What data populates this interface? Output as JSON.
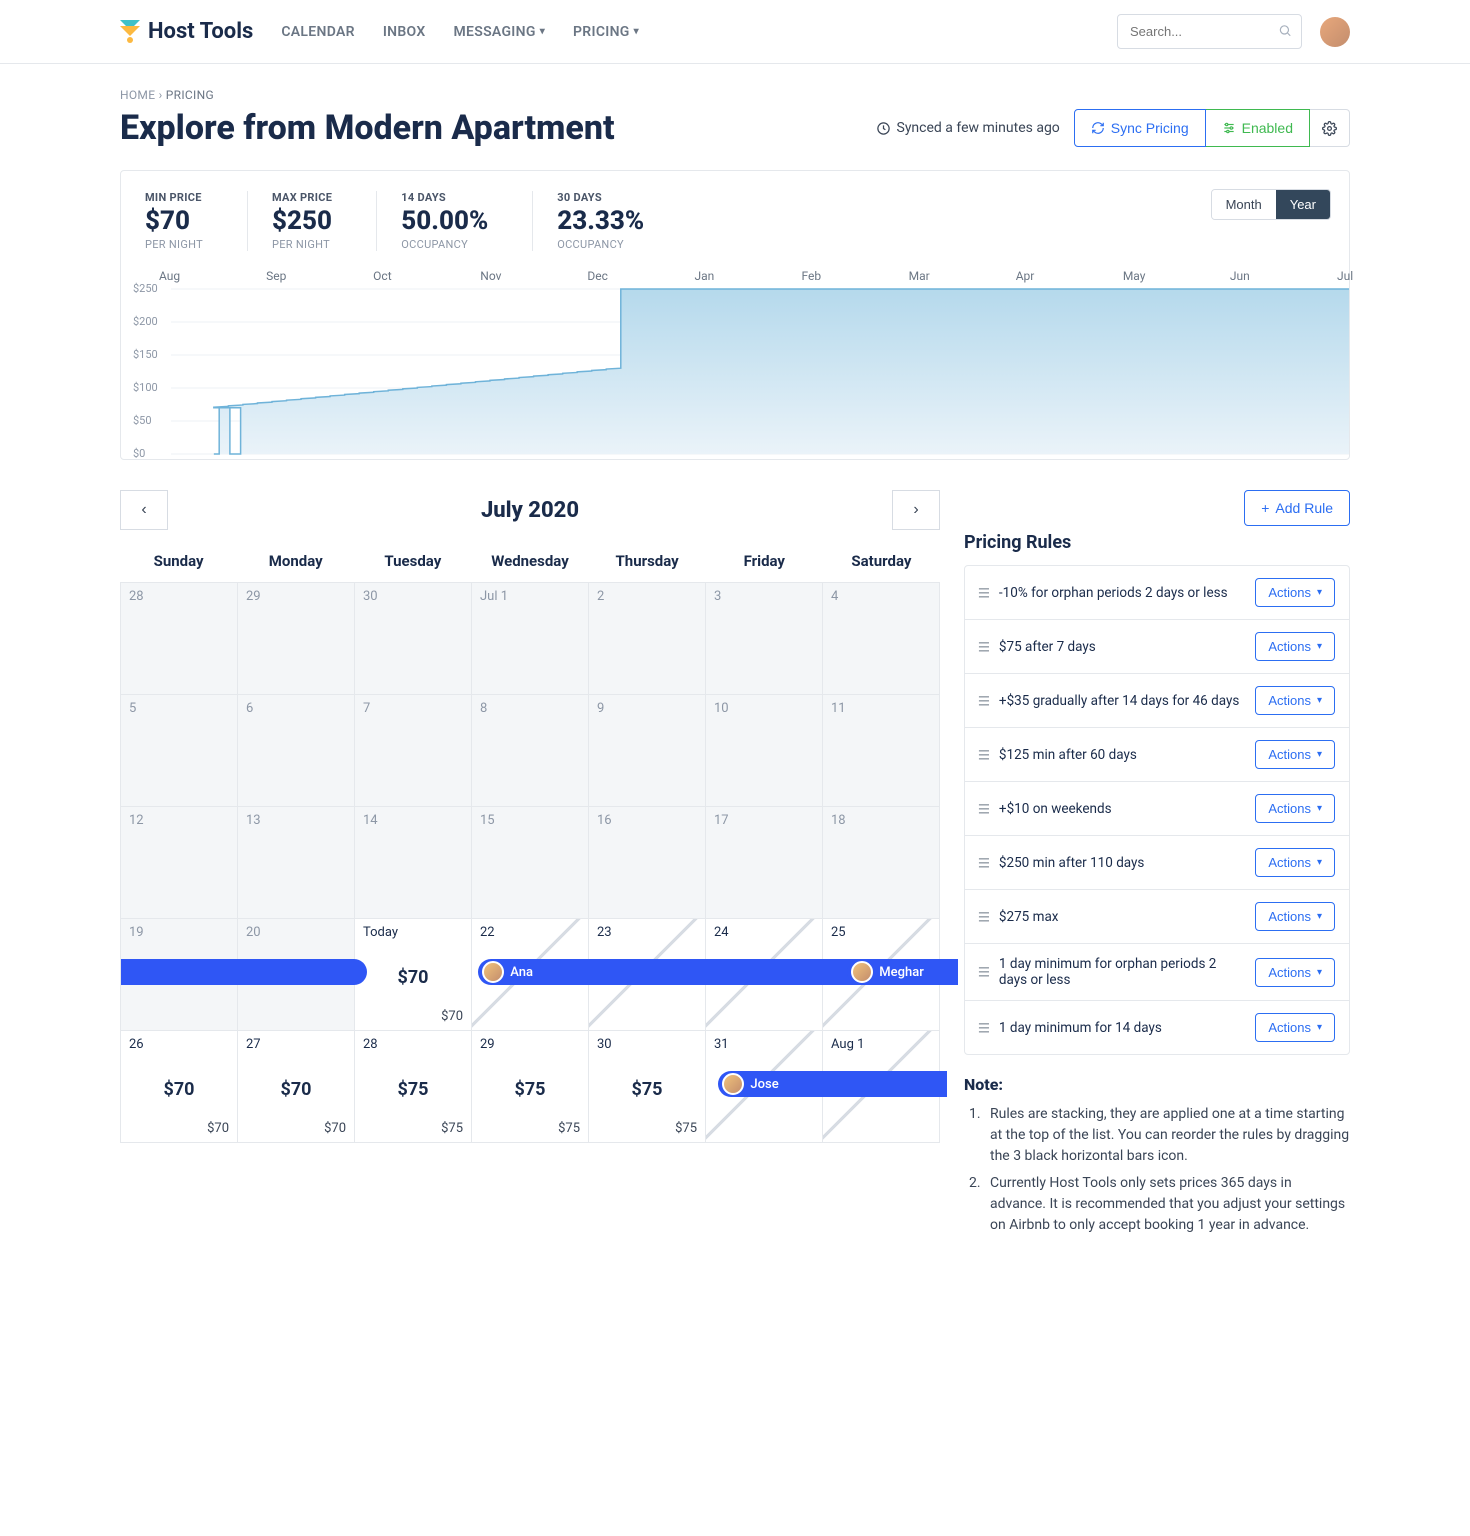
{
  "brand": "Host Tools",
  "nav": {
    "calendar": "CALENDAR",
    "inbox": "INBOX",
    "messaging": "MESSAGING",
    "pricing": "PRICING"
  },
  "search_placeholder": "Search...",
  "breadcrumb": {
    "home": "HOME",
    "current": "PRICING"
  },
  "page_title": "Explore from Modern Apartment",
  "sync_text": "Synced a few minutes ago",
  "btn_sync": "Sync Pricing",
  "btn_enabled": "Enabled",
  "metrics": {
    "min": {
      "label": "MIN PRICE",
      "value": "$70",
      "sub": "PER NIGHT"
    },
    "max": {
      "label": "MAX PRICE",
      "value": "$250",
      "sub": "PER NIGHT"
    },
    "occ14": {
      "label": "14 DAYS",
      "value": "50.00%",
      "sub": "OCCUPANCY"
    },
    "occ30": {
      "label": "30 DAYS",
      "value": "23.33%",
      "sub": "OCCUPANCY"
    }
  },
  "view_toggle": {
    "month": "Month",
    "year": "Year"
  },
  "chart": {
    "type": "area-step",
    "ylim": [
      0,
      250
    ],
    "yticks": [
      "$0",
      "$50",
      "$100",
      "$150",
      "$200",
      "$250"
    ],
    "xticks": [
      "Aug",
      "Sep",
      "Oct",
      "Nov",
      "Dec",
      "Jan",
      "Feb",
      "Mar",
      "Apr",
      "May",
      "Jun",
      "Jul"
    ],
    "line_color": "#6fb3d9",
    "fill_top": "#b5d9ec",
    "fill_bottom": "#eaf3f9",
    "grid_color": "#eef1f4",
    "step_start_y": 70,
    "step_rise_to": 130,
    "jump_at_index": 4.2,
    "jump_to_y": 250
  },
  "calendar": {
    "title": "July 2020",
    "dow": [
      "Sunday",
      "Monday",
      "Tuesday",
      "Wednesday",
      "Thursday",
      "Friday",
      "Saturday"
    ],
    "cells": [
      {
        "d": "28",
        "past": true
      },
      {
        "d": "29",
        "past": true
      },
      {
        "d": "30",
        "past": true
      },
      {
        "d": "Jul 1",
        "past": true
      },
      {
        "d": "2",
        "past": true
      },
      {
        "d": "3",
        "past": true
      },
      {
        "d": "4",
        "past": true
      },
      {
        "d": "5",
        "past": true
      },
      {
        "d": "6",
        "past": true
      },
      {
        "d": "7",
        "past": true
      },
      {
        "d": "8",
        "past": true
      },
      {
        "d": "9",
        "past": true
      },
      {
        "d": "10",
        "past": true
      },
      {
        "d": "11",
        "past": true
      },
      {
        "d": "12",
        "past": true
      },
      {
        "d": "13",
        "past": true
      },
      {
        "d": "14",
        "past": true
      },
      {
        "d": "15",
        "past": true
      },
      {
        "d": "16",
        "past": true
      },
      {
        "d": "17",
        "past": true
      },
      {
        "d": "18",
        "past": true
      },
      {
        "d": "19",
        "past": true
      },
      {
        "d": "20",
        "past": true
      },
      {
        "d": "Today",
        "p1": "$70",
        "p2": "$70"
      },
      {
        "d": "22",
        "booked": true
      },
      {
        "d": "23",
        "booked": true
      },
      {
        "d": "24",
        "booked": true
      },
      {
        "d": "25",
        "booked": true
      },
      {
        "d": "26",
        "p1": "$70",
        "p2": "$70"
      },
      {
        "d": "27",
        "p1": "$70",
        "p2": "$70"
      },
      {
        "d": "28",
        "p1": "$75",
        "p2": "$75"
      },
      {
        "d": "29",
        "p1": "$75",
        "p2": "$75"
      },
      {
        "d": "30",
        "p1": "$75",
        "p2": "$75"
      },
      {
        "d": "31",
        "booked": true
      },
      {
        "d": "Aug 1",
        "booked": true
      }
    ],
    "guests": [
      {
        "name": "",
        "row": 3,
        "start": 0,
        "span": 2.15,
        "round_left": false
      },
      {
        "name": "Ana",
        "row": 3,
        "start": 3.05,
        "span": 4.1
      },
      {
        "name": "Meghar",
        "row": 3,
        "start": 6.2,
        "span": 1.0,
        "round_right": false
      },
      {
        "name": "Jose",
        "row": 4,
        "start": 5.1,
        "span": 2.0,
        "round_right": false
      }
    ]
  },
  "rules": {
    "title": "Pricing Rules",
    "add_label": "Add Rule",
    "actions_label": "Actions",
    "items": [
      "-10% for orphan periods 2 days or less",
      "$75 after 7 days",
      "+$35 gradually after 14 days for 46 days",
      "$125 min after 60 days",
      "+$10 on weekends",
      "$250 min after 110 days",
      "$275 max",
      "1 day minimum for orphan periods 2 days or less",
      "1 day minimum for 14 days"
    ]
  },
  "note": {
    "title": "Note:",
    "items": [
      "Rules are stacking, they are applied one at a time starting at the top of the list. You can reorder the rules by dragging the 3 black horizontal bars icon.",
      "Currently Host Tools only sets prices 365 days in advance. It is recommended that you adjust your settings on Airbnb to only accept booking 1 year in advance."
    ]
  },
  "colors": {
    "primary_blue": "#2f56f5",
    "link_blue": "#2c6ef2",
    "green": "#3fb950"
  }
}
